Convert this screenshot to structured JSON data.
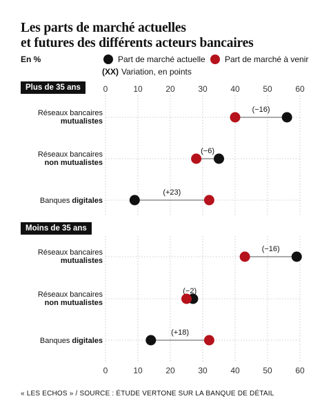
{
  "title_lines": [
    "Les parts de marché actuelles",
    "et futures des différents acteurs bancaires"
  ],
  "unit": "En %",
  "legend": {
    "actual": "Part de marché actuelle",
    "future": "Part de marché à venir",
    "variation_key": "(XX)",
    "variation": "Variation, en points"
  },
  "colors": {
    "actual": "#111111",
    "future": "#b5121b",
    "grid": "#bdbdbd"
  },
  "source": "« LES ECHOS » / SOURCE : ÉTUDE VERTONE SUR LA BANQUE DE DÉTAIL",
  "chart_data": [
    {
      "type": "dot-plot",
      "title": "Plus de 35 ans",
      "xlim": [
        0,
        60
      ],
      "xticks": [
        "0",
        "10",
        "20",
        "30",
        "40",
        "50",
        "60"
      ],
      "grid": true,
      "categories": [
        {
          "line1": "Réseaux bancaires",
          "line2": "mutualistes",
          "bold_line2": true,
          "actual": 56,
          "future": 40,
          "variation": "(−16)"
        },
        {
          "line1": "Réseaux bancaires",
          "line2": "non mutualistes",
          "bold_line2": true,
          "actual": 35,
          "future": 28,
          "variation": "(−6)"
        },
        {
          "line1": "Banques",
          "line2": "digitales",
          "bold_line2": true,
          "inline": true,
          "actual": 9,
          "future": 32,
          "variation": "(+23)"
        }
      ]
    },
    {
      "type": "dot-plot",
      "title": "Moins de 35 ans",
      "xlim": [
        0,
        60
      ],
      "xticks": [
        "0",
        "10",
        "20",
        "30",
        "40",
        "50",
        "60"
      ],
      "grid": true,
      "categories": [
        {
          "line1": "Réseaux bancaires",
          "line2": "mutualistes",
          "bold_line2": true,
          "actual": 59,
          "future": 43,
          "variation": "(−16)"
        },
        {
          "line1": "Réseaux bancaires",
          "line2": "non mutualistes",
          "bold_line2": true,
          "actual": 27,
          "future": 25,
          "variation": "(−2)"
        },
        {
          "line1": "Banques",
          "line2": "digitales",
          "bold_line2": true,
          "inline": true,
          "actual": 14,
          "future": 32,
          "variation": "(+18)"
        }
      ]
    }
  ]
}
